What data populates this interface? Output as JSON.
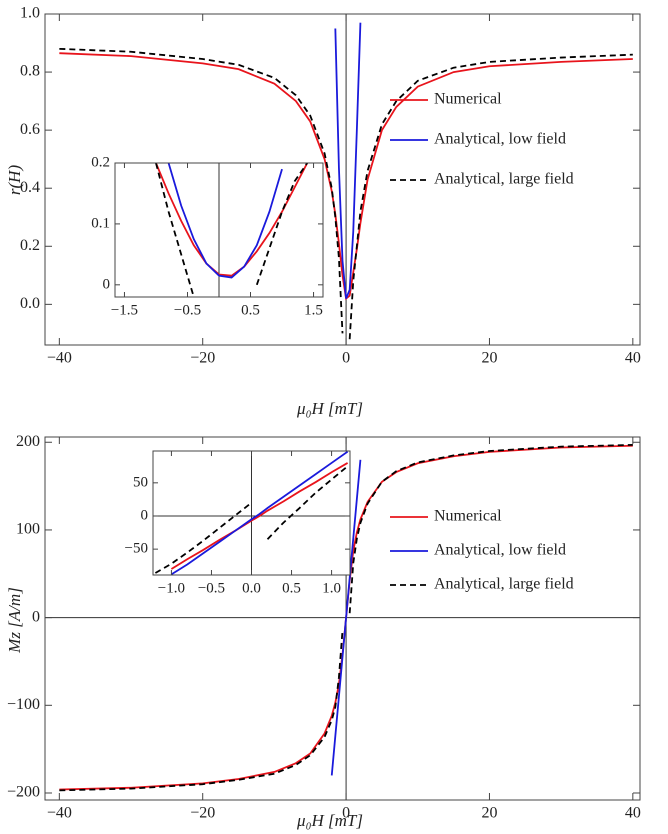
{
  "chart_data": [
    {
      "type": "line",
      "xlabel": "μ₀H [mT]",
      "ylabel": "r(H)",
      "x": [
        -40,
        -30,
        -20,
        -15,
        -10,
        -7,
        -5,
        -3,
        -2,
        -1.5,
        -1,
        -0.5,
        0,
        0.5,
        1,
        1.5,
        2,
        3,
        5,
        7,
        10,
        15,
        20,
        30,
        40
      ],
      "series": [
        {
          "name": "Numerical",
          "color": "#e8141c",
          "style": "solid",
          "values": [
            0.865,
            0.855,
            0.83,
            0.81,
            0.76,
            0.7,
            0.63,
            0.5,
            0.39,
            0.31,
            0.21,
            0.1,
            0.02,
            0.03,
            0.11,
            0.19,
            0.28,
            0.43,
            0.6,
            0.68,
            0.75,
            0.8,
            0.82,
            0.835,
            0.845
          ]
        },
        {
          "name": "Analytical, low field",
          "color": "#1a1adc",
          "style": "solid",
          "values": [
            null,
            null,
            null,
            null,
            null,
            null,
            null,
            null,
            null,
            0.95,
            0.47,
            0.15,
            0.02,
            0.05,
            0.25,
            0.6,
            0.97,
            null,
            null,
            null,
            null,
            null,
            null,
            null,
            null
          ]
        },
        {
          "name": "Analytical, large field",
          "color": "#000000",
          "style": "dashed",
          "values": [
            0.88,
            0.87,
            0.845,
            0.825,
            0.78,
            0.72,
            0.65,
            0.52,
            0.4,
            0.3,
            0.16,
            -0.1,
            null,
            -0.12,
            0.08,
            0.2,
            0.32,
            0.46,
            0.62,
            0.7,
            0.77,
            0.815,
            0.835,
            0.85,
            0.86
          ]
        }
      ],
      "xlim": [
        -42,
        41
      ],
      "ylim": [
        -0.14,
        1.0
      ],
      "xticks": [
        {
          "value": -40,
          "label": "−40"
        },
        {
          "value": -20,
          "label": "−20"
        },
        0,
        20,
        40
      ],
      "yticks": [
        {
          "value": 0,
          "label": "0.0"
        },
        0.2,
        0.4,
        0.6,
        0.8,
        {
          "value": 1,
          "label": "1.0"
        }
      ],
      "origin_lines": [
        "vertical"
      ],
      "legend": "right"
    },
    {
      "type": "line",
      "x": [
        -1.6,
        -1.4,
        -1.2,
        -1.0,
        -0.8,
        -0.6,
        -0.4,
        -0.2,
        0,
        0.2,
        0.4,
        0.6,
        0.8,
        1.0,
        1.2,
        1.4,
        1.6
      ],
      "series": [
        {
          "color": "#e8141c",
          "style": "solid",
          "values": [
            null,
            null,
            null,
            0.2,
            0.15,
            0.105,
            0.065,
            0.035,
            0.017,
            0.015,
            0.03,
            0.055,
            0.085,
            0.12,
            0.16,
            0.2,
            null
          ]
        },
        {
          "color": "#1a1adc",
          "style": "solid",
          "values": [
            null,
            null,
            null,
            null,
            0.2,
            0.13,
            0.075,
            0.035,
            0.015,
            0.012,
            0.03,
            0.065,
            0.12,
            0.19,
            null,
            null,
            null
          ]
        },
        {
          "color": "#000000",
          "style": "dashed",
          "values": [
            null,
            null,
            null,
            0.2,
            0.12,
            0.05,
            -0.02,
            null,
            null,
            null,
            null,
            0.0,
            0.06,
            0.12,
            0.17,
            0.2,
            null
          ]
        }
      ],
      "xlim": [
        -1.65,
        1.65
      ],
      "ylim": [
        -0.02,
        0.2
      ],
      "xticks": [
        {
          "value": -1.5,
          "label": "−1.5"
        },
        {
          "value": -0.5,
          "label": "−0.5"
        },
        0.5,
        1.5
      ],
      "yticks": [
        0,
        0.1,
        0.2
      ],
      "origin_lines": [
        "vertical"
      ]
    },
    {
      "type": "line",
      "xlabel": "μ₀H [mT]",
      "ylabel": "Mz [A/m]",
      "x": [
        -40,
        -30,
        -20,
        -15,
        -10,
        -7,
        -5,
        -3,
        -2,
        -1.5,
        -1,
        -0.5,
        0,
        0.5,
        1,
        1.5,
        2,
        3,
        5,
        7,
        10,
        15,
        20,
        30,
        40
      ],
      "series": [
        {
          "name": "Numerical",
          "color": "#e8141c",
          "style": "solid",
          "values": [
            -196,
            -194,
            -189,
            -184,
            -176,
            -166,
            -155,
            -132,
            -112,
            -97,
            -76,
            -42,
            0,
            42,
            76,
            97,
            112,
            132,
            155,
            166,
            176,
            184,
            189,
            194,
            196
          ]
        },
        {
          "name": "Analytical, low field",
          "color": "#1a1adc",
          "style": "solid",
          "values": [
            null,
            null,
            null,
            null,
            null,
            null,
            null,
            null,
            -180,
            -135,
            -90,
            -45,
            0,
            45,
            90,
            135,
            180,
            null,
            null,
            null,
            null,
            null,
            null,
            null,
            null
          ]
        },
        {
          "name": "Analytical, large field",
          "color": "#000000",
          "style": "dashed",
          "values": [
            -197,
            -195,
            -190,
            -185,
            -178,
            -168,
            -157,
            -136,
            -117,
            -102,
            -68,
            -15,
            null,
            5,
            62,
            90,
            108,
            130,
            155,
            167,
            177,
            185,
            190,
            195,
            197
          ]
        }
      ],
      "xlim": [
        -42,
        41
      ],
      "ylim": [
        -208,
        206
      ],
      "xticks": [
        {
          "value": -40,
          "label": "−40"
        },
        {
          "value": -20,
          "label": "−20"
        },
        0,
        20,
        40
      ],
      "yticks": [
        {
          "value": -200,
          "label": "−200"
        },
        {
          "value": -100,
          "label": "−100"
        },
        0,
        100,
        200
      ],
      "origin_lines": [
        "vertical",
        "horizontal"
      ],
      "legend": "right"
    },
    {
      "type": "line",
      "x": [
        -1.2,
        -1.0,
        -0.8,
        -0.6,
        -0.4,
        -0.2,
        0,
        0.1,
        0.2,
        0.4,
        0.6,
        0.8,
        1.0,
        1.2
      ],
      "series": [
        {
          "color": "#e8141c",
          "style": "solid",
          "values": [
            null,
            -80,
            -65,
            -51,
            -36,
            -22,
            -7,
            0,
            8,
            22,
            37,
            51,
            66,
            80
          ]
        },
        {
          "color": "#1a1adc",
          "style": "solid",
          "values": [
            null,
            -88,
            -73,
            -56,
            -39,
            -22,
            -5,
            3,
            12,
            29,
            46,
            63,
            80,
            97
          ]
        },
        {
          "color": "#000000",
          "style": "dashed",
          "values": [
            -86,
            -72,
            -55,
            -37,
            -18,
            1,
            20,
            null,
            -35,
            -10,
            12,
            35,
            55,
            75
          ]
        }
      ],
      "xlim": [
        -1.23,
        1.23
      ],
      "ylim": [
        -89,
        98
      ],
      "xticks": [
        {
          "value": -1,
          "label": "−1.0"
        },
        {
          "value": -0.5,
          "label": "−0.5"
        },
        {
          "value": 0,
          "label": "0.0"
        },
        0.5,
        {
          "value": 1,
          "label": "1.0"
        }
      ],
      "yticks": [
        {
          "value": -50,
          "label": "−50"
        },
        0,
        50
      ],
      "origin_lines": [
        "vertical",
        "horizontal"
      ]
    }
  ]
}
